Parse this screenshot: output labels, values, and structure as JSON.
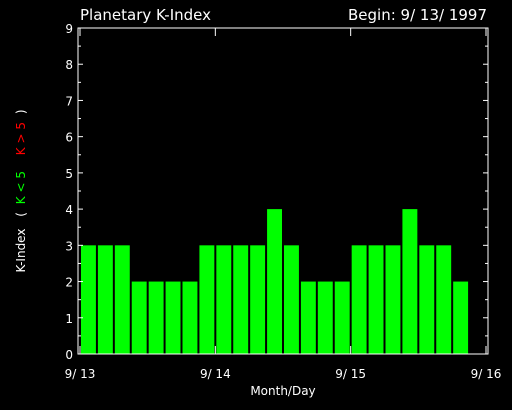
{
  "chart_data": {
    "type": "bar",
    "title": "Planetary K-Index",
    "begin_label": "Begin: 9/ 13/ 1997",
    "xlabel": "Month/Day",
    "ylabel": {
      "main": "K-Index",
      "open": "(",
      "green_text": "K < 5",
      "red_text": "K > 5",
      "close": ")"
    },
    "ylim": [
      0,
      9
    ],
    "yticks": [
      "0",
      "1",
      "2",
      "3",
      "4",
      "5",
      "6",
      "7",
      "8",
      "9"
    ],
    "xticks": [
      "9/ 13",
      "9/ 14",
      "9/ 15",
      "9/ 16"
    ],
    "values": [
      3,
      3,
      3,
      2,
      2,
      2,
      2,
      3,
      3,
      3,
      3,
      4,
      3,
      2,
      2,
      2,
      3,
      3,
      3,
      4,
      3,
      3,
      2
    ],
    "colors": {
      "bar": "#00ff00",
      "low": "#00ff00",
      "high": "#ff0000",
      "axes": "#ffffff",
      "background": "#000000"
    }
  }
}
